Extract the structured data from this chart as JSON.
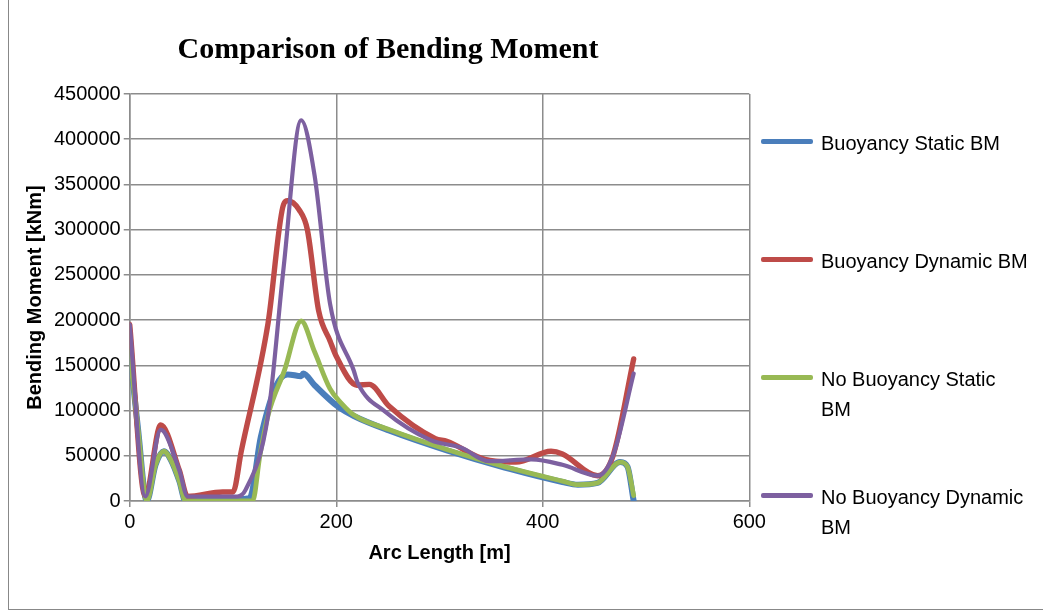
{
  "chart_data": {
    "type": "line",
    "title": "Comparison of Bending Moment",
    "xlabel": "Arc Length [m]",
    "ylabel": "Bending Moment [kNm]",
    "xlim": [
      0,
      600
    ],
    "xticks": [
      0,
      200,
      400,
      600
    ],
    "ylim": [
      0,
      450000
    ],
    "yticks": [
      0,
      50000,
      100000,
      150000,
      200000,
      250000,
      300000,
      350000,
      400000,
      450000
    ],
    "grid": true,
    "legend": "right",
    "marker": "none",
    "line_style": "solid",
    "series": [
      {
        "name": "Buoyancy Static BM",
        "color": "#4a7ebb",
        "x": [
          0,
          8,
          16.5,
          25,
          33,
          40,
          48,
          54,
          116,
          127,
          142,
          153,
          166,
          168,
          179,
          202,
          217,
          251,
          307,
          363,
          419,
          434,
          453,
          475,
          482,
          488
        ],
        "values": [
          165000,
          80000,
          0,
          40000,
          55000,
          45000,
          22000,
          0,
          3000,
          71000,
          128000,
          140000,
          138000,
          141000,
          128000,
          104000,
          94000,
          78000,
          56000,
          37000,
          21000,
          18000,
          20000,
          43000,
          38000,
          0
        ]
      },
      {
        "name": "Buoyancy Dynamic BM",
        "color": "#be4b48",
        "x": [
          0,
          15,
          30,
          48,
          56,
          90,
          100,
          108,
          134,
          149,
          153,
          164,
          172,
          183,
          194,
          200,
          220,
          232,
          251,
          296,
          307,
          344,
          374,
          408,
          419,
          453,
          468,
          488
        ],
        "values": [
          195000,
          5000,
          84000,
          34000,
          5000,
          10000,
          10000,
          55000,
          197000,
          328000,
          332000,
          322000,
          300000,
          210000,
          177000,
          160000,
          128000,
          129000,
          105000,
          69000,
          66000,
          46000,
          43000,
          55000,
          52000,
          28000,
          50000,
          157000
        ]
      },
      {
        "name": "No Buoyancy Static BM",
        "color": "#98b954",
        "x": [
          0,
          8,
          16.5,
          25,
          33,
          40,
          48,
          54,
          119,
          126,
          134,
          150,
          166,
          179,
          194,
          205,
          217,
          251,
          307,
          363,
          419,
          434,
          453,
          475,
          482,
          488
        ],
        "values": [
          165000,
          80000,
          0,
          40000,
          55000,
          45000,
          22000,
          0,
          0,
          50000,
          95000,
          145000,
          199000,
          165000,
          124000,
          108000,
          95000,
          79000,
          57000,
          38000,
          22000,
          18000,
          20000,
          43000,
          38000,
          6000
        ]
      },
      {
        "name": "No Buoyancy Dynamic BM",
        "color": "#7d60a0",
        "x": [
          0,
          15,
          30,
          48,
          56,
          104,
          112,
          134,
          149,
          166,
          179,
          194,
          217,
          221,
          247,
          292,
          321,
          348,
          389,
          419,
          453,
          468,
          488
        ],
        "values": [
          195000,
          5000,
          79000,
          34000,
          5000,
          5000,
          12000,
          95000,
          258000,
          421000,
          360000,
          218000,
          144000,
          130000,
          99000,
          67000,
          59000,
          44000,
          46000,
          40000,
          28000,
          50000,
          141000
        ]
      }
    ]
  }
}
